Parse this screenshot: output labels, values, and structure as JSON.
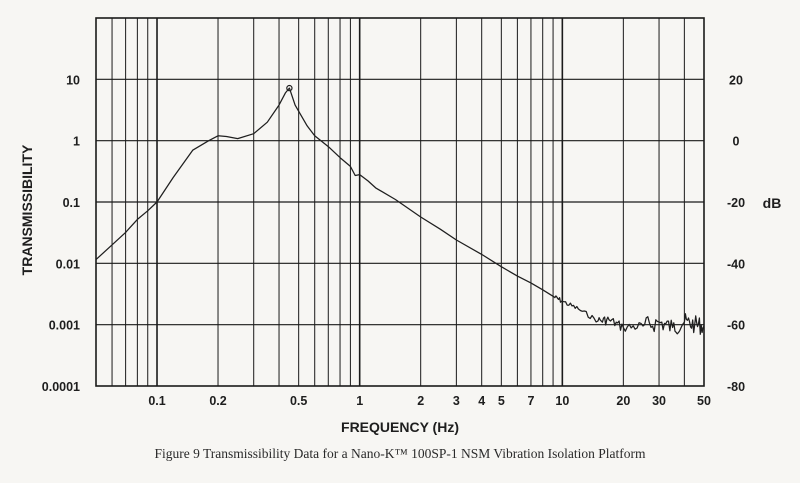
{
  "chart_data": {
    "type": "line",
    "title": "",
    "caption": "Figure 9  Transmissibility Data for a Nano-K™ 100SP-1 NSM Vibration Isolation Platform",
    "xlabel": "FREQUENCY (Hz)",
    "ylabel": "TRANSMISSIBILITY",
    "y2label": "dB",
    "xscale": "log",
    "yscale": "log",
    "xlim": [
      0.05,
      50
    ],
    "ylim": [
      0.0001,
      100
    ],
    "y2lim": [
      -80,
      40
    ],
    "grid": true,
    "x_tick_labels": [
      {
        "value": 0.1,
        "label": "0.1"
      },
      {
        "value": 0.2,
        "label": "0.2"
      },
      {
        "value": 0.5,
        "label": "0.5"
      },
      {
        "value": 1,
        "label": "1"
      },
      {
        "value": 2,
        "label": "2"
      },
      {
        "value": 3,
        "label": "3"
      },
      {
        "value": 4,
        "label": "4"
      },
      {
        "value": 5,
        "label": "5"
      },
      {
        "value": 7,
        "label": "7"
      },
      {
        "value": 10,
        "label": "10"
      },
      {
        "value": 20,
        "label": "20"
      },
      {
        "value": 30,
        "label": "30"
      },
      {
        "value": 50,
        "label": "50"
      }
    ],
    "y_tick_labels": [
      {
        "value": 10,
        "label": "10"
      },
      {
        "value": 1,
        "label": "1"
      },
      {
        "value": 0.1,
        "label": "0.1"
      },
      {
        "value": 0.01,
        "label": "0.01"
      },
      {
        "value": 0.001,
        "label": "0.001"
      },
      {
        "value": 0.0001,
        "label": "0.0001"
      }
    ],
    "y2_tick_labels": [
      {
        "value": 20,
        "label": "20"
      },
      {
        "value": 0,
        "label": "0"
      },
      {
        "value": -20,
        "label": "-20"
      },
      {
        "value": -40,
        "label": "-40"
      },
      {
        "value": -60,
        "label": "-60"
      },
      {
        "value": -80,
        "label": "-80"
      }
    ],
    "series": [
      {
        "x": [
          0.05,
          0.06,
          0.07,
          0.08,
          0.09,
          0.1,
          0.12,
          0.15,
          0.18,
          0.2,
          0.22,
          0.25,
          0.3,
          0.35,
          0.4,
          0.43,
          0.45,
          0.48,
          0.55,
          0.6,
          0.7,
          0.8,
          0.9,
          0.95,
          1.0,
          1.1,
          1.2,
          1.5,
          2,
          2.5,
          3,
          4,
          5,
          6,
          7,
          8,
          9,
          10,
          12,
          15,
          17,
          20,
          25,
          30,
          35,
          40,
          45,
          50
        ],
        "y": [
          0.0115,
          0.02,
          0.032,
          0.052,
          0.072,
          0.1,
          0.25,
          0.7,
          1.0,
          1.2,
          1.17,
          1.08,
          1.3,
          2.0,
          3.8,
          6.0,
          7.2,
          3.8,
          1.75,
          1.2,
          0.8,
          0.53,
          0.38,
          0.27,
          0.28,
          0.22,
          0.17,
          0.11,
          0.057,
          0.036,
          0.024,
          0.014,
          0.0088,
          0.0062,
          0.0048,
          0.0037,
          0.0029,
          0.0024,
          0.0018,
          0.00115,
          0.0012,
          0.0009,
          0.00095,
          0.0011,
          0.0009,
          0.0011,
          0.001,
          0.00095
        ],
        "marker_point": {
          "x": 0.45,
          "y": 7.2
        }
      }
    ]
  }
}
